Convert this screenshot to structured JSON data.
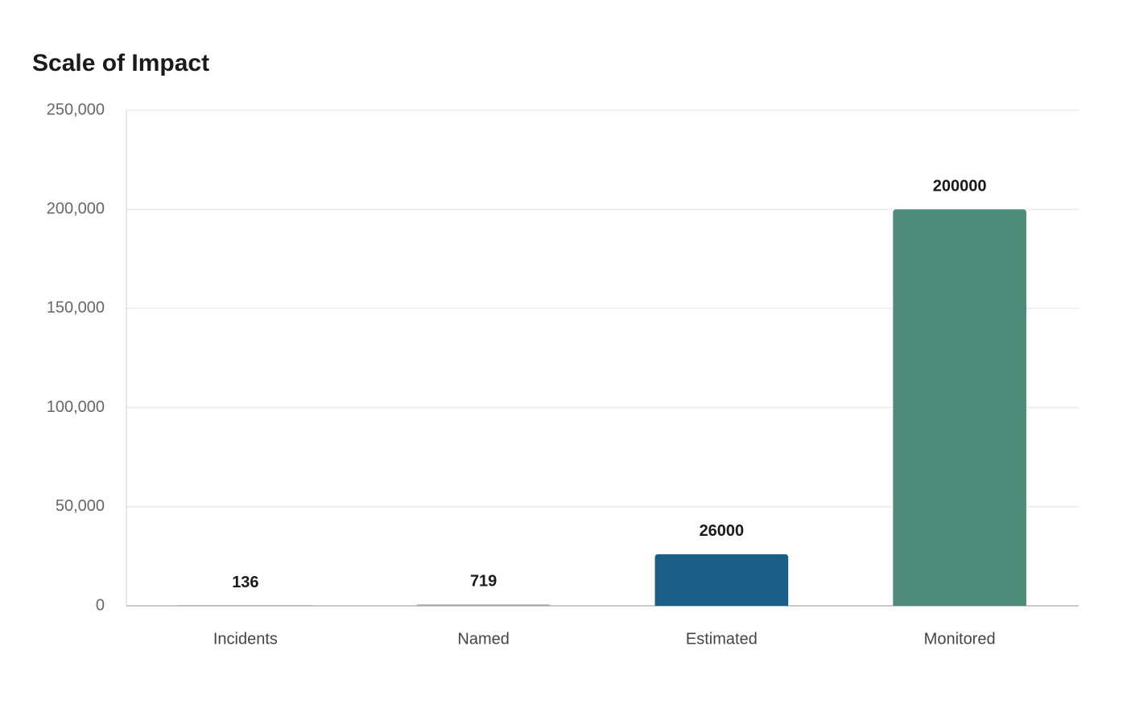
{
  "chart_data": {
    "type": "bar",
    "title": "Scale of Impact",
    "categories": [
      "Incidents",
      "Named",
      "Estimated",
      "Monitored"
    ],
    "values": [
      136,
      719,
      26000,
      200000
    ],
    "colors": [
      "#8a9bb0",
      "#aaaaaa",
      "#1a5f85",
      "#4e8c7a"
    ],
    "ylim": [
      0,
      250000
    ],
    "yticks": [
      0,
      {
        "value": 50000,
        "label": "50,000"
      },
      {
        "value": 100000,
        "label": "100,000"
      },
      {
        "value": 150000,
        "label": "150,000"
      },
      {
        "value": 200000,
        "label": "200,000"
      },
      {
        "value": 250000,
        "label": "250,000"
      }
    ],
    "grid": true
  }
}
